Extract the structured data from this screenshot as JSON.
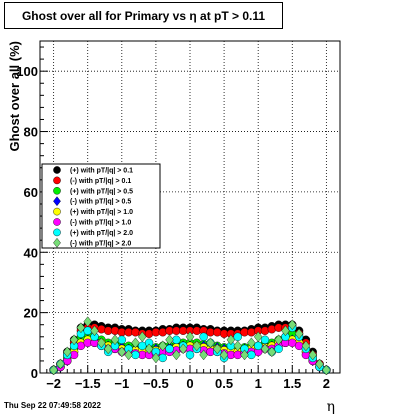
{
  "chart_data": {
    "type": "scatter",
    "title": "Ghost over all for Primary vs η at pT > 0.11",
    "xlabel": "η",
    "ylabel": "Ghost over all (%)",
    "xlim": [
      -2.2,
      2.2
    ],
    "ylim": [
      0,
      110
    ],
    "xticks": [
      -2,
      -1.5,
      -1,
      -0.5,
      0,
      0.5,
      1,
      1.5,
      2
    ],
    "xtick_labels": [
      "−2",
      "−1.5",
      "−1",
      "−0.5",
      "0",
      "0.5",
      "1",
      "1.5",
      "2"
    ],
    "yticks": [
      0,
      20,
      40,
      60,
      80,
      100
    ],
    "ytick_labels": [
      "0",
      "20",
      "40",
      "60",
      "80",
      "100"
    ],
    "grid": true,
    "legend_position": "left-middle",
    "series": [
      {
        "name": "(+) with pT/|q| > 0.1",
        "color": "#000000",
        "marker": "circle",
        "x": [
          -2.0,
          -1.9,
          -1.8,
          -1.7,
          -1.6,
          -1.5,
          -1.4,
          -1.3,
          -1.2,
          -1.1,
          -1.0,
          -0.9,
          -0.8,
          -0.7,
          -0.6,
          -0.5,
          -0.4,
          -0.3,
          -0.2,
          -0.1,
          0.0,
          0.1,
          0.2,
          0.3,
          0.4,
          0.5,
          0.6,
          0.7,
          0.8,
          0.9,
          1.0,
          1.1,
          1.2,
          1.3,
          1.4,
          1.5,
          1.6,
          1.7,
          1.8,
          1.9,
          2.0
        ],
        "values": [
          1,
          3,
          7,
          11,
          15,
          16,
          16,
          15.5,
          15,
          15,
          14.5,
          14.5,
          14,
          14,
          14,
          14,
          14.5,
          14.5,
          15,
          15,
          15,
          15,
          14.5,
          14.5,
          14,
          14,
          14,
          14,
          14,
          14.5,
          15,
          15,
          15.5,
          16,
          16,
          16,
          14,
          11,
          7,
          3,
          1
        ]
      },
      {
        "name": "(-) with pT/|q| > 0.1",
        "color": "#ff0000",
        "marker": "circle",
        "x": [
          -2.0,
          -1.9,
          -1.8,
          -1.7,
          -1.6,
          -1.5,
          -1.4,
          -1.3,
          -1.2,
          -1.1,
          -1.0,
          -0.9,
          -0.8,
          -0.7,
          -0.6,
          -0.5,
          -0.4,
          -0.3,
          -0.2,
          -0.1,
          0.0,
          0.1,
          0.2,
          0.3,
          0.4,
          0.5,
          0.6,
          0.7,
          0.8,
          0.9,
          1.0,
          1.1,
          1.2,
          1.3,
          1.4,
          1.5,
          1.6,
          1.7,
          1.8,
          1.9,
          2.0
        ],
        "values": [
          1,
          3,
          6,
          10,
          14,
          15,
          15,
          14.5,
          14,
          14,
          13.5,
          13.5,
          13.5,
          13,
          13,
          13.5,
          13.5,
          14,
          14,
          14,
          14,
          14,
          14,
          13.5,
          13.5,
          13,
          13,
          13,
          13.5,
          13.5,
          14,
          14,
          14.5,
          15,
          15,
          15,
          13,
          10,
          6,
          3,
          1
        ]
      },
      {
        "name": "(+) with pT/|q| > 0.5",
        "color": "#00ee00",
        "marker": "circle",
        "x": [
          -2.0,
          -1.9,
          -1.8,
          -1.7,
          -1.6,
          -1.5,
          -1.4,
          -1.3,
          -1.2,
          -1.1,
          -1.0,
          -0.9,
          -0.8,
          -0.7,
          -0.6,
          -0.5,
          -0.4,
          -0.3,
          -0.2,
          -0.1,
          0.0,
          0.1,
          0.2,
          0.3,
          0.4,
          0.5,
          0.6,
          0.7,
          0.8,
          0.9,
          1.0,
          1.1,
          1.2,
          1.3,
          1.4,
          1.5,
          1.6,
          1.7,
          1.8,
          1.9,
          2.0
        ],
        "values": [
          1,
          2,
          5,
          8,
          12,
          13,
          12,
          11,
          10,
          10,
          9,
          9,
          8.5,
          8,
          8,
          8.5,
          9,
          9,
          9.5,
          10,
          10,
          10,
          9.5,
          9,
          9,
          8.5,
          8,
          8,
          8.5,
          9,
          9,
          10,
          10,
          11,
          12,
          13,
          12,
          8,
          5,
          2,
          1
        ]
      },
      {
        "name": "(-) with pT/|q| > 0.5",
        "color": "#0000ff",
        "marker": "diamond",
        "x": [
          -2.0,
          -1.9,
          -1.8,
          -1.7,
          -1.6,
          -1.5,
          -1.4,
          -1.3,
          -1.2,
          -1.1,
          -1.0,
          -0.9,
          -0.8,
          -0.7,
          -0.6,
          -0.5,
          -0.4,
          -0.3,
          -0.2,
          -0.1,
          0.0,
          0.1,
          0.2,
          0.3,
          0.4,
          0.5,
          0.6,
          0.7,
          0.8,
          0.9,
          1.0,
          1.1,
          1.2,
          1.3,
          1.4,
          1.5,
          1.6,
          1.7,
          1.8,
          1.9,
          2.0
        ],
        "values": [
          1,
          2,
          4,
          7,
          10,
          11,
          11,
          10,
          9,
          9,
          8.5,
          8,
          8,
          7.5,
          7.5,
          8,
          8,
          8.5,
          9,
          9,
          9,
          9,
          9,
          8.5,
          8.5,
          8,
          7.5,
          7.5,
          8,
          8,
          8.5,
          9,
          9,
          10,
          11,
          11,
          10,
          7,
          4,
          2,
          1
        ]
      },
      {
        "name": "(+) with pT/|q| > 1.0",
        "color": "#ffff00",
        "marker": "circle",
        "x": [
          -2.0,
          -1.9,
          -1.8,
          -1.7,
          -1.6,
          -1.5,
          -1.4,
          -1.3,
          -1.2,
          -1.1,
          -1.0,
          -0.9,
          -0.8,
          -0.7,
          -0.6,
          -0.5,
          -0.4,
          -0.3,
          -0.2,
          -0.1,
          0.0,
          0.1,
          0.2,
          0.3,
          0.4,
          0.5,
          0.6,
          0.7,
          0.8,
          0.9,
          1.0,
          1.1,
          1.2,
          1.3,
          1.4,
          1.5,
          1.6,
          1.7,
          1.8,
          1.9,
          2.0
        ],
        "values": [
          1,
          2,
          4,
          7,
          10,
          11,
          10,
          10,
          9,
          8,
          8,
          8,
          7.5,
          7.5,
          7,
          7.5,
          8,
          8,
          8.5,
          9,
          9,
          9,
          8.5,
          8,
          8,
          7.5,
          7.5,
          7,
          7.5,
          8,
          8,
          8.5,
          9,
          10,
          10,
          11,
          10,
          7,
          4,
          2,
          1
        ]
      },
      {
        "name": "(-) with pT/|q| > 1.0",
        "color": "#ff00ff",
        "marker": "circle",
        "x": [
          -2.0,
          -1.9,
          -1.8,
          -1.7,
          -1.6,
          -1.5,
          -1.4,
          -1.3,
          -1.2,
          -1.1,
          -1.0,
          -0.9,
          -0.8,
          -0.7,
          -0.6,
          -0.5,
          -0.4,
          -0.3,
          -0.2,
          -0.1,
          0.0,
          0.1,
          0.2,
          0.3,
          0.4,
          0.5,
          0.6,
          0.7,
          0.8,
          0.9,
          1.0,
          1.1,
          1.2,
          1.3,
          1.4,
          1.5,
          1.6,
          1.7,
          1.8,
          1.9,
          2.0
        ],
        "values": [
          1,
          2,
          4,
          6,
          9,
          10,
          10,
          9,
          8,
          8,
          7,
          7,
          6.5,
          6,
          6,
          6.5,
          7,
          7,
          7.5,
          8,
          8,
          8,
          7.5,
          7,
          7,
          6.5,
          6,
          6,
          6.5,
          7,
          7,
          8,
          8,
          9,
          10,
          10,
          9,
          6,
          4,
          2,
          1
        ]
      },
      {
        "name": "(+) with pT/|q| > 2.0",
        "color": "#00ffff",
        "marker": "circle",
        "x": [
          -2.0,
          -1.9,
          -1.8,
          -1.7,
          -1.6,
          -1.5,
          -1.4,
          -1.3,
          -1.2,
          -1.1,
          -1.0,
          -0.9,
          -0.8,
          -0.7,
          -0.6,
          -0.5,
          -0.4,
          -0.3,
          -0.2,
          -0.1,
          0.0,
          0.1,
          0.2,
          0.3,
          0.4,
          0.5,
          0.6,
          0.7,
          0.8,
          0.9,
          1.0,
          1.1,
          1.2,
          1.3,
          1.4,
          1.5,
          1.6,
          1.7,
          1.8,
          1.9,
          2.0
        ],
        "values": [
          1,
          3,
          6,
          9,
          13,
          14,
          12,
          9,
          7,
          9,
          11,
          8,
          6,
          9,
          10,
          7,
          5,
          8,
          11,
          9,
          6,
          8,
          12,
          10,
          7,
          5,
          9,
          12,
          8,
          6,
          9,
          11,
          7,
          8,
          12,
          15,
          12,
          8,
          5,
          2,
          1
        ]
      },
      {
        "name": "(-) with pT/|q| > 2.0",
        "color": "#77dd77",
        "marker": "diamond",
        "x": [
          -2.0,
          -1.9,
          -1.8,
          -1.7,
          -1.6,
          -1.5,
          -1.4,
          -1.3,
          -1.2,
          -1.1,
          -1.0,
          -0.9,
          -0.8,
          -0.7,
          -0.6,
          -0.5,
          -0.4,
          -0.3,
          -0.2,
          -0.1,
          0.0,
          0.1,
          0.2,
          0.3,
          0.4,
          0.5,
          0.6,
          0.7,
          0.8,
          0.9,
          1.0,
          1.1,
          1.2,
          1.3,
          1.4,
          1.5,
          1.6,
          1.7,
          1.8,
          1.9,
          2.0
        ],
        "values": [
          1,
          3,
          7,
          11,
          15,
          17,
          14,
          10,
          8,
          11,
          7,
          6,
          10,
          12,
          8,
          5,
          9,
          11,
          6,
          8,
          12,
          9,
          6,
          10,
          8,
          6,
          11,
          9,
          6,
          10,
          12,
          8,
          7,
          11,
          14,
          16,
          13,
          9,
          6,
          3,
          1
        ]
      }
    ]
  },
  "footer": {
    "timestamp": "Thu Sep 22 07:49:58 2022"
  }
}
